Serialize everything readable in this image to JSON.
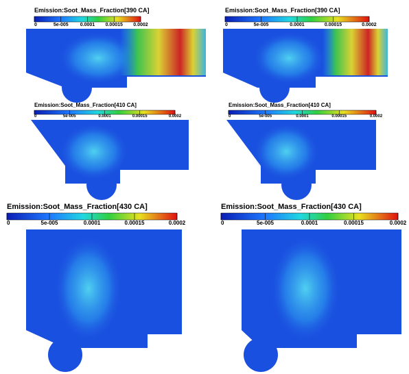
{
  "panels": [
    {
      "title": "Emission:Soot_Mass_Fraction[390 CA]",
      "ticks": [
        "0",
        "5e-005",
        "0.0001",
        "0.00015",
        "0.0002"
      ]
    },
    {
      "title": "Emission:Soot_Mass_Fraction[390 CA]",
      "ticks": [
        "0",
        "5e-005",
        "0.0001",
        "0.00015",
        "0.0002"
      ]
    },
    {
      "title": "Emission:Soot_Mass_Fraction[410 CA]",
      "ticks": [
        "0",
        "5e-005",
        "0.0001",
        "0.00015",
        "0.0002"
      ]
    },
    {
      "title": "Emission:Soot_Mass_Fraction[410 CA]",
      "ticks": [
        "0",
        "5e-005",
        "0.0001",
        "0.00015",
        "0.0002"
      ]
    },
    {
      "title": "Emission:Soot_Mass_Fraction[430 CA]",
      "ticks": [
        "0",
        "5e-005",
        "0.0001",
        "0.00015",
        "0.0002"
      ]
    },
    {
      "title": "Emission:Soot_Mass_Fraction[430 CA]",
      "ticks": [
        "0",
        "5e-005",
        "0.0001",
        "0.00015",
        "0.0002"
      ]
    }
  ]
}
